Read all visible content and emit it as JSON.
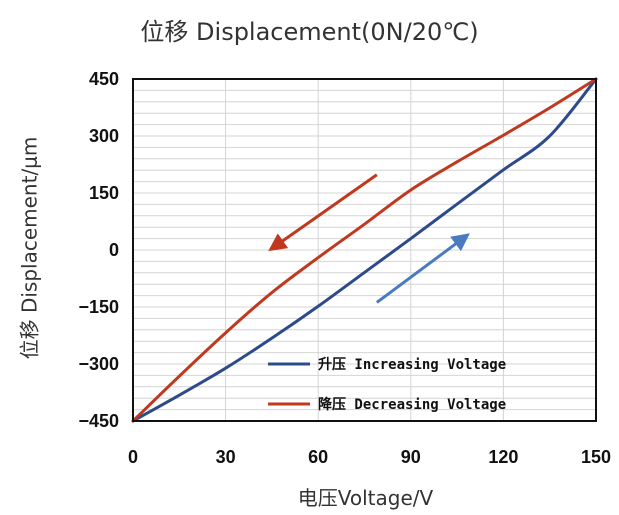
{
  "chart_data": {
    "type": "line",
    "title": "位移 Displacement(0N/20℃)",
    "xlabel": "电压Voltage/V",
    "ylabel": "位移 Displacement/μm",
    "xlim": [
      0,
      150
    ],
    "ylim": [
      -450,
      450
    ],
    "xticks": [
      0,
      30,
      60,
      90,
      120,
      150
    ],
    "yticks": [
      450,
      300,
      150,
      0,
      -150,
      -300,
      -450
    ],
    "grid": true,
    "legend_position": "bottom-right",
    "series": [
      {
        "name": "升压 Increasing Voltage",
        "color": "#2E4A8B",
        "x": [
          0,
          15,
          30,
          45,
          60,
          75,
          90,
          105,
          120,
          135,
          150
        ],
        "y": [
          -450,
          -382,
          -311,
          -232,
          -148,
          -59,
          30,
          121,
          211,
          300,
          450
        ]
      },
      {
        "name": "降压 Decreasing Voltage",
        "color": "#C0391F",
        "x": [
          0,
          15,
          30,
          45,
          60,
          75,
          90,
          105,
          120,
          135,
          150
        ],
        "y": [
          -450,
          -332,
          -218,
          -112,
          -20,
          68,
          158,
          232,
          302,
          374,
          450
        ]
      }
    ],
    "annotations": [
      {
        "name": "decreasing-arrow",
        "color": "#C0391F",
        "from": [
          79,
          198
        ],
        "to": [
          45,
          4
        ]
      },
      {
        "name": "increasing-arrow",
        "color": "#4A7BC0",
        "from": [
          79,
          -138
        ],
        "to": [
          108,
          37
        ]
      }
    ]
  }
}
